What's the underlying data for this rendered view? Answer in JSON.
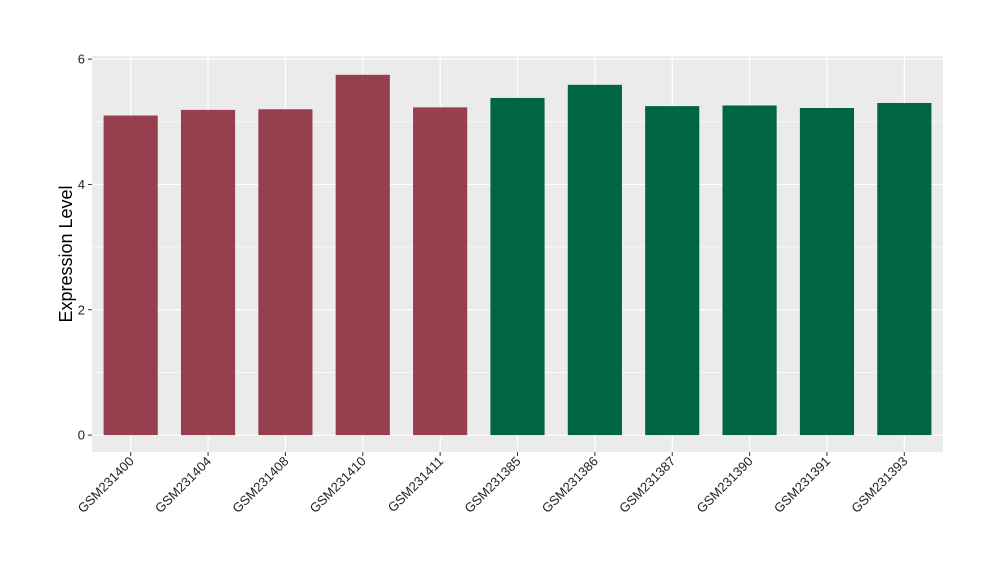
{
  "chart_data": {
    "type": "bar",
    "title": "",
    "xlabel": "",
    "ylabel": "Expression Level",
    "ylim": [
      -0.27,
      6.05
    ],
    "y_ticks": [
      "0",
      "2",
      "4",
      "6"
    ],
    "categories": [
      "GSM231400",
      "GSM231404",
      "GSM231408",
      "GSM231410",
      "GSM231411",
      "GSM231385",
      "GSM231386",
      "GSM231387",
      "GSM231390",
      "GSM231391",
      "GSM231393"
    ],
    "values": [
      5.1,
      5.19,
      5.2,
      5.75,
      5.23,
      5.38,
      5.59,
      5.25,
      5.26,
      5.22,
      5.3
    ],
    "groups": [
      0,
      0,
      0,
      0,
      0,
      1,
      1,
      1,
      1,
      1,
      1
    ],
    "group_colors": [
      "#96404F",
      "#006543"
    ],
    "panel_background": "#EBEBEB",
    "grid": true,
    "legend": "none"
  }
}
